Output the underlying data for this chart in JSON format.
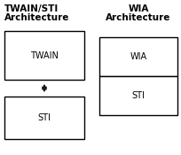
{
  "bg_color": "#ffffff",
  "title_left_line1": "TWAIN/STI",
  "title_left_line2": "Architecture",
  "title_right_line1": "WIA",
  "title_right_line2": "Architecture",
  "left_box1_label": "TWAIN",
  "left_box2_label": "STI",
  "right_box1_label": "WIA",
  "right_box2_label": "STI",
  "box_edge_color": "#000000",
  "box_face_color": "#ffffff",
  "text_color": "#000000",
  "arrow_color": "#000000",
  "title_fontsize": 7.5,
  "label_fontsize": 7
}
